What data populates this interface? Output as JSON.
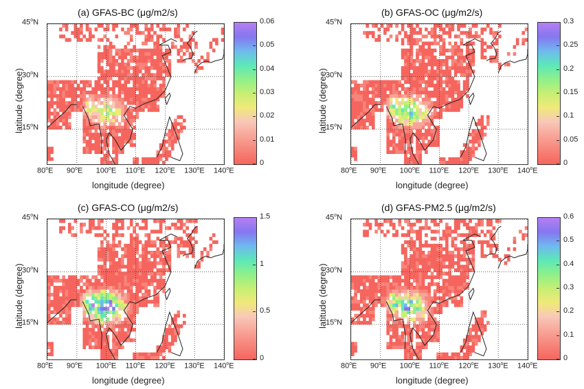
{
  "figure": {
    "x_axis_label": "longitude (degree)",
    "y_axis_label": "latitude (degree)",
    "lon_ticks": [
      {
        "deg": "80",
        "suffix": "E"
      },
      {
        "deg": "90",
        "suffix": "E"
      },
      {
        "deg": "100",
        "suffix": "E"
      },
      {
        "deg": "110",
        "suffix": "E"
      },
      {
        "deg": "120",
        "suffix": "E"
      },
      {
        "deg": "130",
        "suffix": "E"
      },
      {
        "deg": "140",
        "suffix": "E"
      }
    ],
    "lat_ticks": [
      {
        "deg": "15",
        "suffix": "N"
      },
      {
        "deg": "30",
        "suffix": "N"
      },
      {
        "deg": "45",
        "suffix": "N"
      }
    ],
    "lon_range": [
      80,
      140
    ],
    "lat_range": [
      5,
      45
    ],
    "colormap": [
      "#f5655e",
      "#f7847a",
      "#f8a498",
      "#f7c8b8",
      "#f0e97a",
      "#c7ef74",
      "#8ff08a",
      "#5de8b8",
      "#6fb9ef",
      "#8577f0",
      "#b47ff2"
    ]
  },
  "chart_data": [
    {
      "type": "heatmap",
      "panel_id": "a",
      "title": "(a)  GFAS-BC  (μg/m2/s)",
      "xlabel": "longitude (degree)",
      "ylabel": "latitude (degree)",
      "xlim": [
        80,
        140
      ],
      "ylim": [
        5,
        45
      ],
      "colorbar_range": [
        0,
        0.06
      ],
      "colorbar_ticks": [
        "0",
        "0.01",
        "0.02",
        "0.03",
        "0.04",
        "0.05",
        "0.06"
      ],
      "hotspot_intensity": 0.55
    },
    {
      "type": "heatmap",
      "panel_id": "b",
      "title": "(b)  GFAS-OC  (μg/m2/s)",
      "xlabel": "longitude (degree)",
      "ylabel": "latitude (degree)",
      "xlim": [
        80,
        140
      ],
      "ylim": [
        5,
        45
      ],
      "colorbar_range": [
        0,
        0.3
      ],
      "colorbar_ticks": [
        "0",
        "0.05",
        "0.1",
        "0.15",
        "0.2",
        "0.25",
        "0.3"
      ],
      "hotspot_intensity": 0.75
    },
    {
      "type": "heatmap",
      "panel_id": "c",
      "title": "(c)  GFAS-CO  (μg/m2/s)",
      "xlabel": "longitude (degree)",
      "ylabel": "latitude (degree)",
      "xlim": [
        80,
        140
      ],
      "ylim": [
        5,
        45
      ],
      "colorbar_range": [
        0,
        1.5
      ],
      "colorbar_ticks": [
        "0",
        "0.5",
        "1",
        "1.5"
      ],
      "hotspot_intensity": 1.0
    },
    {
      "type": "heatmap",
      "panel_id": "d",
      "title": "(d)  GFAS-PM2.5  (μg/m2/s)",
      "xlabel": "longitude (degree)",
      "ylabel": "latitude (degree)",
      "xlim": [
        80,
        140
      ],
      "ylim": [
        5,
        45
      ],
      "colorbar_range": [
        0,
        0.6
      ],
      "colorbar_ticks": [
        "0",
        "0.1",
        "0.2",
        "0.3",
        "0.4",
        "0.5",
        "0.6"
      ],
      "hotspot_intensity": 0.75
    }
  ]
}
